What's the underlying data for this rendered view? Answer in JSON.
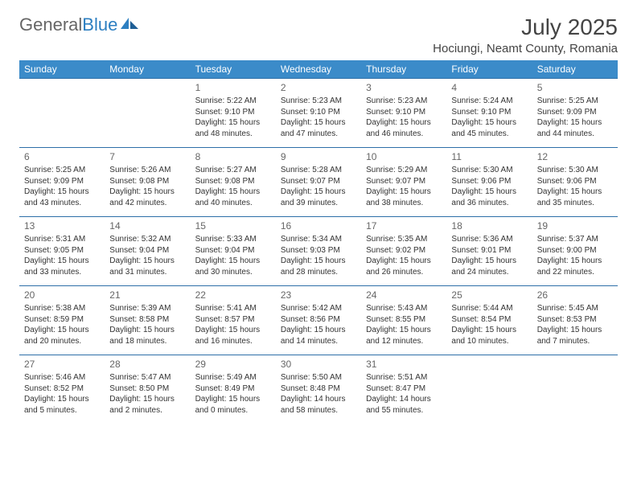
{
  "brand": {
    "part1": "General",
    "part2": "Blue"
  },
  "title": "July 2025",
  "location": "Hociungi, Neamt County, Romania",
  "colors": {
    "header_bg": "#3b8bc9",
    "row_border": "#2d6fa8",
    "brand_blue": "#2d7fc1",
    "text": "#333333"
  },
  "day_headers": [
    "Sunday",
    "Monday",
    "Tuesday",
    "Wednesday",
    "Thursday",
    "Friday",
    "Saturday"
  ],
  "weeks": [
    [
      {
        "empty": true
      },
      {
        "empty": true
      },
      {
        "num": "1",
        "sunrise": "Sunrise: 5:22 AM",
        "sunset": "Sunset: 9:10 PM",
        "day1": "Daylight: 15 hours",
        "day2": "and 48 minutes."
      },
      {
        "num": "2",
        "sunrise": "Sunrise: 5:23 AM",
        "sunset": "Sunset: 9:10 PM",
        "day1": "Daylight: 15 hours",
        "day2": "and 47 minutes."
      },
      {
        "num": "3",
        "sunrise": "Sunrise: 5:23 AM",
        "sunset": "Sunset: 9:10 PM",
        "day1": "Daylight: 15 hours",
        "day2": "and 46 minutes."
      },
      {
        "num": "4",
        "sunrise": "Sunrise: 5:24 AM",
        "sunset": "Sunset: 9:10 PM",
        "day1": "Daylight: 15 hours",
        "day2": "and 45 minutes."
      },
      {
        "num": "5",
        "sunrise": "Sunrise: 5:25 AM",
        "sunset": "Sunset: 9:09 PM",
        "day1": "Daylight: 15 hours",
        "day2": "and 44 minutes."
      }
    ],
    [
      {
        "num": "6",
        "sunrise": "Sunrise: 5:25 AM",
        "sunset": "Sunset: 9:09 PM",
        "day1": "Daylight: 15 hours",
        "day2": "and 43 minutes."
      },
      {
        "num": "7",
        "sunrise": "Sunrise: 5:26 AM",
        "sunset": "Sunset: 9:08 PM",
        "day1": "Daylight: 15 hours",
        "day2": "and 42 minutes."
      },
      {
        "num": "8",
        "sunrise": "Sunrise: 5:27 AM",
        "sunset": "Sunset: 9:08 PM",
        "day1": "Daylight: 15 hours",
        "day2": "and 40 minutes."
      },
      {
        "num": "9",
        "sunrise": "Sunrise: 5:28 AM",
        "sunset": "Sunset: 9:07 PM",
        "day1": "Daylight: 15 hours",
        "day2": "and 39 minutes."
      },
      {
        "num": "10",
        "sunrise": "Sunrise: 5:29 AM",
        "sunset": "Sunset: 9:07 PM",
        "day1": "Daylight: 15 hours",
        "day2": "and 38 minutes."
      },
      {
        "num": "11",
        "sunrise": "Sunrise: 5:30 AM",
        "sunset": "Sunset: 9:06 PM",
        "day1": "Daylight: 15 hours",
        "day2": "and 36 minutes."
      },
      {
        "num": "12",
        "sunrise": "Sunrise: 5:30 AM",
        "sunset": "Sunset: 9:06 PM",
        "day1": "Daylight: 15 hours",
        "day2": "and 35 minutes."
      }
    ],
    [
      {
        "num": "13",
        "sunrise": "Sunrise: 5:31 AM",
        "sunset": "Sunset: 9:05 PM",
        "day1": "Daylight: 15 hours",
        "day2": "and 33 minutes."
      },
      {
        "num": "14",
        "sunrise": "Sunrise: 5:32 AM",
        "sunset": "Sunset: 9:04 PM",
        "day1": "Daylight: 15 hours",
        "day2": "and 31 minutes."
      },
      {
        "num": "15",
        "sunrise": "Sunrise: 5:33 AM",
        "sunset": "Sunset: 9:04 PM",
        "day1": "Daylight: 15 hours",
        "day2": "and 30 minutes."
      },
      {
        "num": "16",
        "sunrise": "Sunrise: 5:34 AM",
        "sunset": "Sunset: 9:03 PM",
        "day1": "Daylight: 15 hours",
        "day2": "and 28 minutes."
      },
      {
        "num": "17",
        "sunrise": "Sunrise: 5:35 AM",
        "sunset": "Sunset: 9:02 PM",
        "day1": "Daylight: 15 hours",
        "day2": "and 26 minutes."
      },
      {
        "num": "18",
        "sunrise": "Sunrise: 5:36 AM",
        "sunset": "Sunset: 9:01 PM",
        "day1": "Daylight: 15 hours",
        "day2": "and 24 minutes."
      },
      {
        "num": "19",
        "sunrise": "Sunrise: 5:37 AM",
        "sunset": "Sunset: 9:00 PM",
        "day1": "Daylight: 15 hours",
        "day2": "and 22 minutes."
      }
    ],
    [
      {
        "num": "20",
        "sunrise": "Sunrise: 5:38 AM",
        "sunset": "Sunset: 8:59 PM",
        "day1": "Daylight: 15 hours",
        "day2": "and 20 minutes."
      },
      {
        "num": "21",
        "sunrise": "Sunrise: 5:39 AM",
        "sunset": "Sunset: 8:58 PM",
        "day1": "Daylight: 15 hours",
        "day2": "and 18 minutes."
      },
      {
        "num": "22",
        "sunrise": "Sunrise: 5:41 AM",
        "sunset": "Sunset: 8:57 PM",
        "day1": "Daylight: 15 hours",
        "day2": "and 16 minutes."
      },
      {
        "num": "23",
        "sunrise": "Sunrise: 5:42 AM",
        "sunset": "Sunset: 8:56 PM",
        "day1": "Daylight: 15 hours",
        "day2": "and 14 minutes."
      },
      {
        "num": "24",
        "sunrise": "Sunrise: 5:43 AM",
        "sunset": "Sunset: 8:55 PM",
        "day1": "Daylight: 15 hours",
        "day2": "and 12 minutes."
      },
      {
        "num": "25",
        "sunrise": "Sunrise: 5:44 AM",
        "sunset": "Sunset: 8:54 PM",
        "day1": "Daylight: 15 hours",
        "day2": "and 10 minutes."
      },
      {
        "num": "26",
        "sunrise": "Sunrise: 5:45 AM",
        "sunset": "Sunset: 8:53 PM",
        "day1": "Daylight: 15 hours",
        "day2": "and 7 minutes."
      }
    ],
    [
      {
        "num": "27",
        "sunrise": "Sunrise: 5:46 AM",
        "sunset": "Sunset: 8:52 PM",
        "day1": "Daylight: 15 hours",
        "day2": "and 5 minutes."
      },
      {
        "num": "28",
        "sunrise": "Sunrise: 5:47 AM",
        "sunset": "Sunset: 8:50 PM",
        "day1": "Daylight: 15 hours",
        "day2": "and 2 minutes."
      },
      {
        "num": "29",
        "sunrise": "Sunrise: 5:49 AM",
        "sunset": "Sunset: 8:49 PM",
        "day1": "Daylight: 15 hours",
        "day2": "and 0 minutes."
      },
      {
        "num": "30",
        "sunrise": "Sunrise: 5:50 AM",
        "sunset": "Sunset: 8:48 PM",
        "day1": "Daylight: 14 hours",
        "day2": "and 58 minutes."
      },
      {
        "num": "31",
        "sunrise": "Sunrise: 5:51 AM",
        "sunset": "Sunset: 8:47 PM",
        "day1": "Daylight: 14 hours",
        "day2": "and 55 minutes."
      },
      {
        "empty": true
      },
      {
        "empty": true
      }
    ]
  ]
}
